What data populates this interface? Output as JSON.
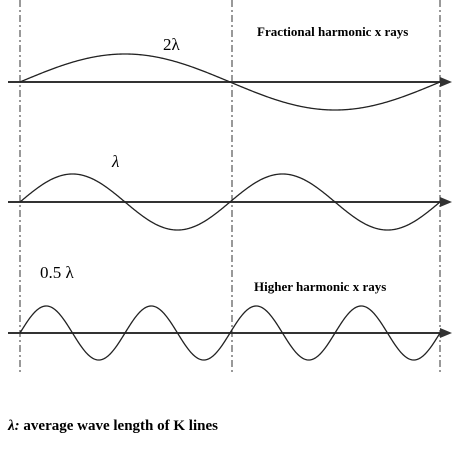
{
  "waves": [
    {
      "label": "2λ"
    },
    {
      "label": "λ"
    },
    {
      "label": "0.5 λ"
    }
  ],
  "annotations": [
    "Fractional harmonic x rays",
    "Higher harmonic x rays"
  ],
  "footer": {
    "symbol": "λ:",
    "text": "average wave length of K lines"
  }
}
